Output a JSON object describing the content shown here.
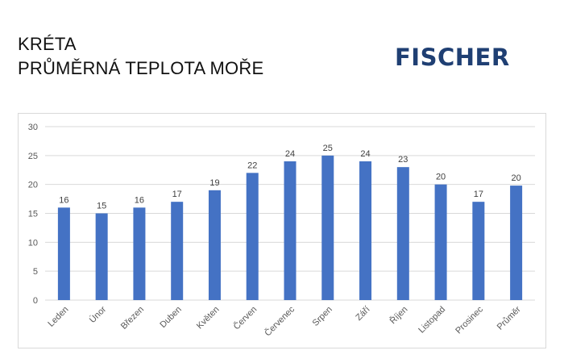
{
  "header": {
    "title_line1": "KRÉTA",
    "title_line2": "PRŮMĚRNÁ TEPLOTA MOŘE",
    "logo_text": "FISCHER",
    "logo_color": "#1f3f73"
  },
  "chart_data": {
    "type": "bar",
    "title": "",
    "xlabel": "",
    "ylabel": "",
    "categories": [
      "Leden",
      "Únor",
      "Březen",
      "Duben",
      "Květen",
      "Červen",
      "Červenec",
      "Srpen",
      "Září",
      "Říjen",
      "Listopad",
      "Prosinec",
      "Průměr"
    ],
    "series": [
      {
        "values": [
          16,
          15,
          16,
          17,
          19,
          22,
          24,
          25,
          24,
          23,
          20,
          17,
          20
        ],
        "display_values": [
          16,
          15,
          16,
          17,
          19,
          22,
          24,
          25,
          24,
          23,
          20,
          17,
          19.8
        ],
        "color": "#4472c4"
      }
    ],
    "ylim": [
      0,
      30
    ],
    "yticks": [
      0,
      5,
      10,
      15,
      20,
      25,
      30
    ],
    "grid": true,
    "legend": "none",
    "data_labels": true
  }
}
